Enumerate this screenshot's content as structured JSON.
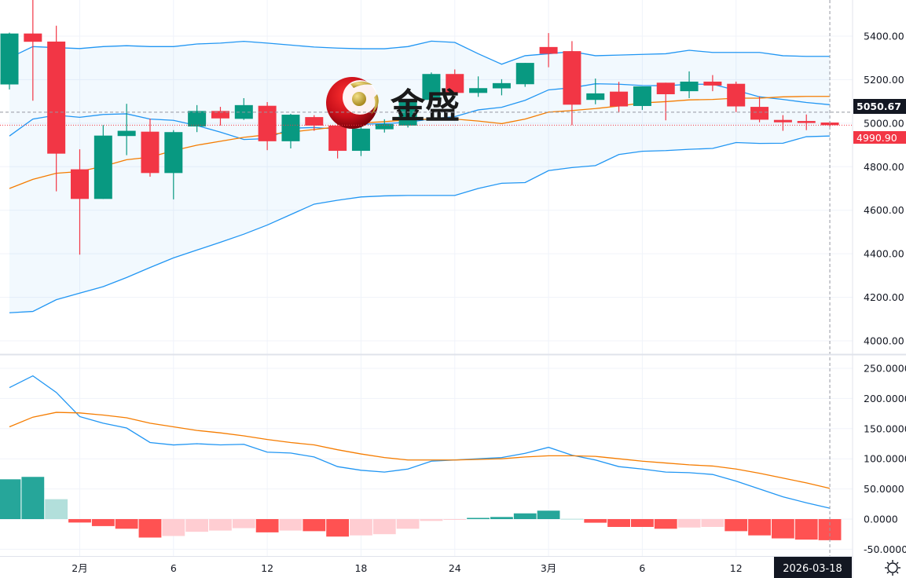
{
  "logo": {
    "text": "金盛"
  },
  "colors": {
    "up": "#089981",
    "down": "#f23645",
    "band": "#2196f3",
    "band_fill": "#2196f3",
    "ma": "#f57c00",
    "macd": "#2196f3",
    "signal": "#f57c00",
    "hist_up_strong": "#26a69a",
    "hist_up_weak": "#b2dfdb",
    "hist_down_strong": "#ff5252",
    "hist_down_weak": "#ffcdd2",
    "crosshair": "#9598a1",
    "last_price": "#f23645"
  },
  "price_axis": {
    "ticks": [
      "5400.00",
      "5200.00",
      "5000.00",
      "4800.00",
      "4600.00",
      "4400.00",
      "4200.00",
      "4000.00"
    ],
    "crosshair_label": "5050.67",
    "last_price_label": "4990.90"
  },
  "macd_axis": {
    "ticks": [
      "250.0000",
      "200.0000",
      "150.0000",
      "100.0000",
      "50.0000",
      "0.0000",
      "-50.0000"
    ]
  },
  "time_axis": {
    "labels": [
      {
        "text": "2月",
        "index": 3
      },
      {
        "text": "6",
        "index": 7
      },
      {
        "text": "12",
        "index": 11
      },
      {
        "text": "18",
        "index": 15
      },
      {
        "text": "24",
        "index": 19
      },
      {
        "text": "3月",
        "index": 23
      },
      {
        "text": "6",
        "index": 27
      },
      {
        "text": "12",
        "index": 31
      }
    ],
    "crosshair_date": "2026-03-18"
  },
  "settings_icon": "sun-gear-icon",
  "chart_data": [
    {
      "type": "candlestick",
      "ylim": [
        3942,
        5566
      ],
      "grid": true,
      "crosshair": {
        "date": "2026-03-18",
        "price": 5050.67
      },
      "last_price": 4990.9,
      "columns": [
        "date",
        "open",
        "high",
        "low",
        "close"
      ],
      "candles": [
        [
          "2026-01-28",
          5178,
          5416,
          5155,
          5412
        ],
        [
          "2026-01-29",
          5412,
          5600,
          5103,
          5374
        ],
        [
          "2026-01-30",
          5375,
          5448,
          4687,
          4860
        ],
        [
          "2026-02-02",
          4788,
          4880,
          4396,
          4652
        ],
        [
          "2026-02-03",
          4652,
          4991,
          4652,
          4943
        ],
        [
          "2026-02-04",
          4941,
          5089,
          4853,
          4965
        ],
        [
          "2026-02-05",
          4961,
          5021,
          4754,
          4771
        ],
        [
          "2026-02-06",
          4771,
          4968,
          4650,
          4959
        ],
        [
          "2026-02-09",
          4985,
          5083,
          4959,
          5056
        ],
        [
          "2026-02-10",
          5056,
          5075,
          4989,
          5022
        ],
        [
          "2026-02-11",
          5020,
          5115,
          5015,
          5083
        ],
        [
          "2026-02-12",
          5080,
          5097,
          4876,
          4917
        ],
        [
          "2026-02-13",
          4917,
          5043,
          4884,
          5039
        ],
        [
          "2026-02-16",
          5028,
          5037,
          4965,
          4989
        ],
        [
          "2026-02-17",
          4989,
          4995,
          4838,
          4873
        ],
        [
          "2026-02-18",
          4873,
          4985,
          4849,
          4975
        ],
        [
          "2026-02-19",
          4972,
          5018,
          4957,
          4996
        ],
        [
          "2026-02-20",
          4989,
          5110,
          4980,
          5104
        ],
        [
          "2026-02-23",
          5107,
          5233,
          5107,
          5226
        ],
        [
          "2026-02-24",
          5226,
          5247,
          5130,
          5139
        ],
        [
          "2026-02-25",
          5139,
          5215,
          5121,
          5161
        ],
        [
          "2026-02-26",
          5160,
          5202,
          5128,
          5184
        ],
        [
          "2026-02-27",
          5179,
          5277,
          5167,
          5277
        ],
        [
          "2026-03-02",
          5350,
          5414,
          5257,
          5319
        ],
        [
          "2026-03-03",
          5331,
          5377,
          4991,
          5085
        ],
        [
          "2026-03-04",
          5107,
          5205,
          5087,
          5137
        ],
        [
          "2026-03-05",
          5145,
          5190,
          5049,
          5077
        ],
        [
          "2026-03-06",
          5079,
          5169,
          5061,
          5169
        ],
        [
          "2026-03-09",
          5186,
          5186,
          5013,
          5133
        ],
        [
          "2026-03-10",
          5147,
          5238,
          5115,
          5191
        ],
        [
          "2026-03-11",
          5191,
          5221,
          5147,
          5173
        ],
        [
          "2026-03-12",
          5181,
          5191,
          5051,
          5077
        ],
        [
          "2026-03-13",
          5075,
          5123,
          5004,
          5016
        ],
        [
          "2026-03-16",
          5015,
          5037,
          4965,
          5004
        ],
        [
          "2026-03-17",
          5010,
          5040,
          4968,
          5001
        ],
        [
          "2026-03-18",
          5003,
          5008,
          4985,
          4990.9
        ]
      ],
      "bollinger": {
        "upper": [
          5300,
          5352,
          5347,
          5343,
          5352,
          5356,
          5352,
          5352,
          5364,
          5368,
          5376,
          5368,
          5359,
          5350,
          5345,
          5342,
          5342,
          5352,
          5377,
          5371,
          5319,
          5271,
          5310,
          5319,
          5329,
          5310,
          5313,
          5316,
          5319,
          5335,
          5325,
          5325,
          5325,
          5310,
          5307,
          5307
        ],
        "basis": [
          4941,
          5019,
          5037,
          5027,
          5040,
          5043,
          5019,
          5013,
          4989,
          4959,
          4925,
          4929,
          4977,
          4980,
          4973,
          4995,
          4998,
          5004,
          5020,
          5030,
          5061,
          5073,
          5105,
          5153,
          5163,
          5181,
          5179,
          5173,
          5172,
          5179,
          5179,
          5151,
          5121,
          5109,
          5095,
          5085
        ],
        "lower": [
          4129,
          4135,
          4189,
          4219,
          4249,
          4291,
          4337,
          4381,
          4417,
          4453,
          4490,
          4532,
          4580,
          4628,
          4646,
          4661,
          4666,
          4668,
          4668,
          4668,
          4700,
          4724,
          4727,
          4782,
          4796,
          4805,
          4856,
          4871,
          4874,
          4880,
          4884,
          4911,
          4907,
          4908,
          4938,
          4941
        ]
      },
      "ma": [
        4700,
        4742,
        4770,
        4778,
        4802,
        4832,
        4844,
        4874,
        4899,
        4917,
        4935,
        4947,
        4959,
        4971,
        4983,
        5001,
        5007,
        5015,
        5019,
        5019,
        5010,
        4998,
        5019,
        5051,
        5058,
        5067,
        5079,
        5093,
        5099,
        5107,
        5109,
        5115,
        5115,
        5121,
        5123,
        5123
      ]
    },
    {
      "type": "macd",
      "ylim": [
        -61,
        272
      ],
      "grid": true,
      "macd": [
        218,
        237.5,
        210,
        170,
        159,
        151,
        127,
        123,
        125,
        123,
        124,
        111,
        109.5,
        103,
        87,
        81,
        78,
        83,
        96,
        98,
        100,
        102,
        109,
        119,
        106,
        98,
        87,
        83,
        78,
        77,
        74,
        63,
        50,
        37,
        27,
        18
      ],
      "signal": [
        153,
        169,
        177,
        176,
        172.5,
        168,
        159,
        153,
        147,
        143,
        138,
        132,
        127,
        123,
        115,
        108,
        102,
        98,
        98,
        98,
        99,
        100,
        103,
        105,
        105,
        104,
        100,
        96,
        93,
        90,
        88,
        83,
        76,
        68,
        60,
        51
      ],
      "histogram": [
        66,
        70,
        33,
        -5.7,
        -11.6,
        -16,
        -30.6,
        -28,
        -21,
        -19,
        -15,
        -22,
        -19,
        -20,
        -29,
        -27,
        -25,
        -16,
        -3,
        -0.5,
        2,
        3.5,
        9.5,
        14,
        0.5,
        -6,
        -13,
        -13,
        -16,
        -14,
        -13,
        -20,
        -27,
        -32,
        -34,
        -35
      ]
    }
  ]
}
